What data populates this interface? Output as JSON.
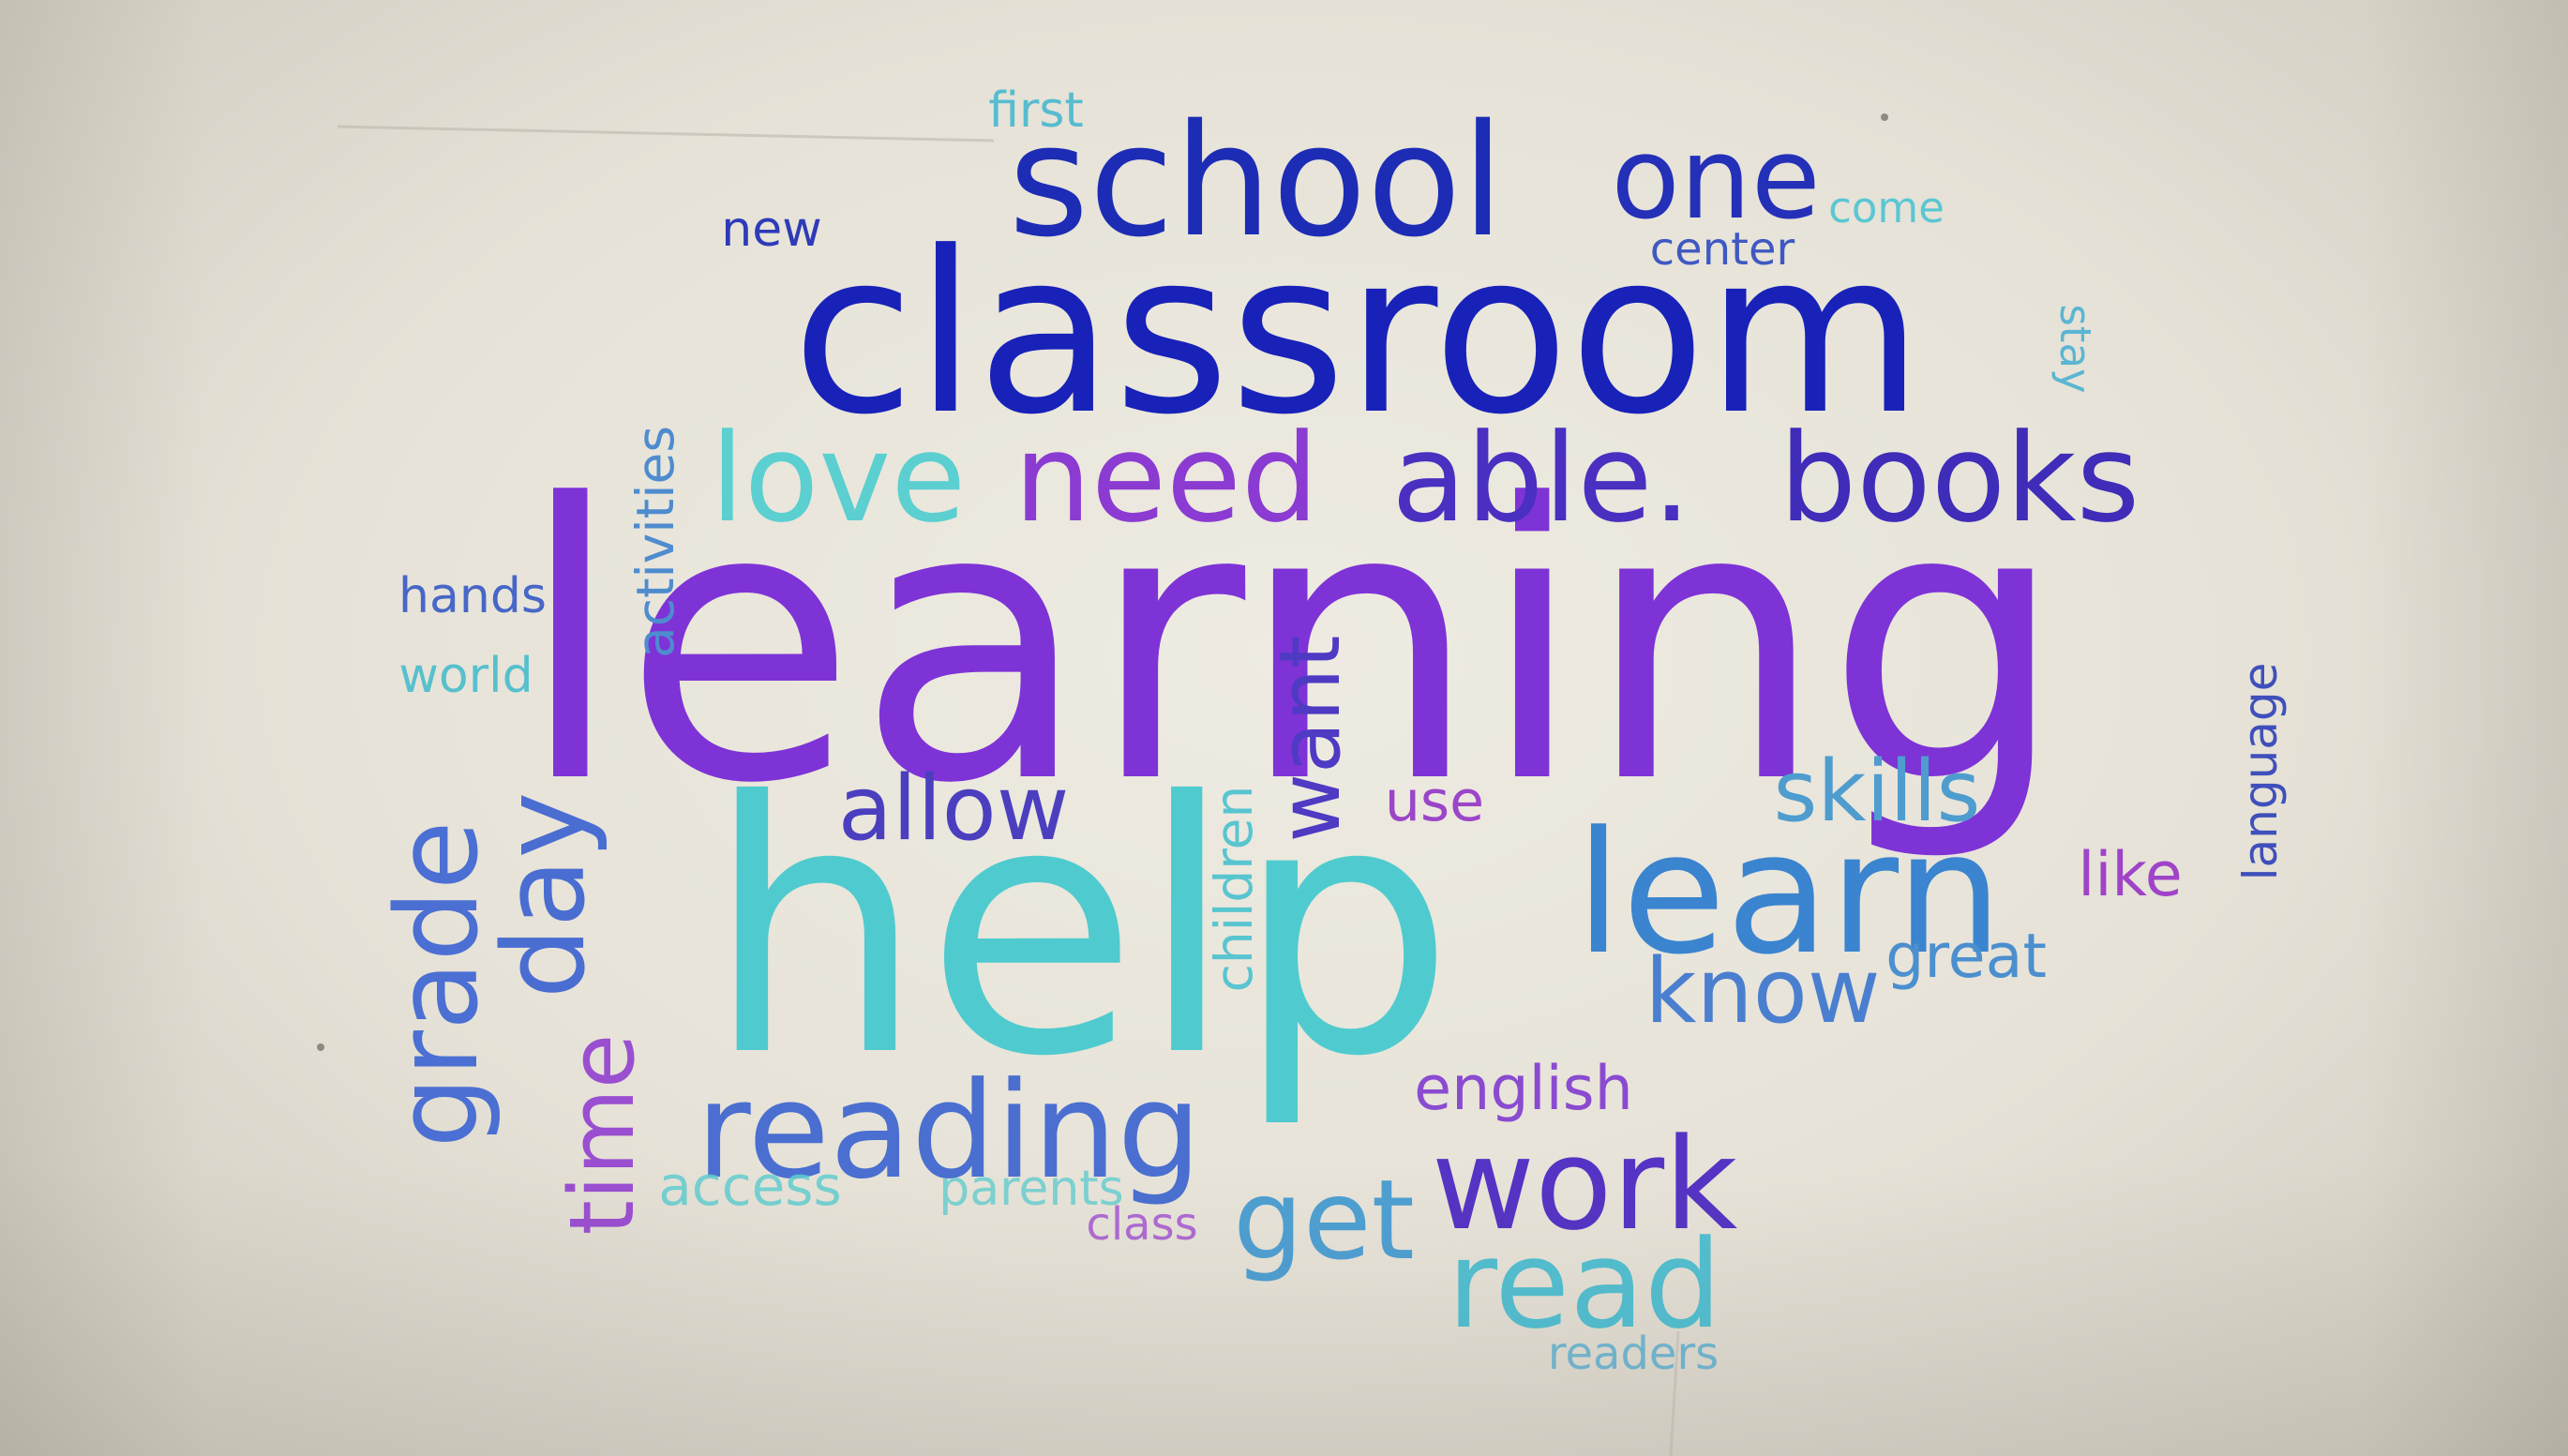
{
  "words": [
    {
      "id": "learning",
      "text": "learning",
      "color": "#7e33d6"
    },
    {
      "id": "help",
      "text": "help",
      "color": "#4fcbcf"
    },
    {
      "id": "classroom",
      "text": "classroom",
      "color": "#1822b8"
    },
    {
      "id": "school",
      "text": "school",
      "color": "#1d2cb5"
    },
    {
      "id": "one",
      "text": "one",
      "color": "#2430b8"
    },
    {
      "id": "love",
      "text": "love",
      "color": "#5ccfd0"
    },
    {
      "id": "need",
      "text": "need",
      "color": "#8b3bd1"
    },
    {
      "id": "able",
      "text": "able.",
      "color": "#4a2fc0"
    },
    {
      "id": "books",
      "text": "books",
      "color": "#3f2cb8"
    },
    {
      "id": "learn",
      "text": "learn",
      "color": "#3a84d0"
    },
    {
      "id": "reading",
      "text": "reading",
      "color": "#4a6fd0"
    },
    {
      "id": "grade",
      "text": "grade",
      "color": "#4b6fd3"
    },
    {
      "id": "day",
      "text": "day",
      "color": "#4a6dd2"
    },
    {
      "id": "work",
      "text": "work",
      "color": "#5533c4"
    },
    {
      "id": "read",
      "text": "read",
      "color": "#52bfd1"
    },
    {
      "id": "get",
      "text": "get",
      "color": "#4e9fd2"
    },
    {
      "id": "time",
      "text": "time",
      "color": "#9a4fd0"
    },
    {
      "id": "allow",
      "text": "allow",
      "color": "#4b3fbf"
    },
    {
      "id": "want",
      "text": "want",
      "color": "#4e3ac3"
    },
    {
      "id": "skills",
      "text": "skills",
      "color": "#4f9ccf"
    },
    {
      "id": "know",
      "text": "know",
      "color": "#4a7fd0"
    },
    {
      "id": "great",
      "text": "great",
      "color": "#4b8fcf"
    },
    {
      "id": "english",
      "text": "english",
      "color": "#8a4bd0"
    },
    {
      "id": "like",
      "text": "like",
      "color": "#9f43c9"
    },
    {
      "id": "use",
      "text": "use",
      "color": "#9b45c8"
    },
    {
      "id": "language",
      "text": "language",
      "color": "#3f4fbb"
    },
    {
      "id": "children",
      "text": "children",
      "color": "#58c5d0"
    },
    {
      "id": "activities",
      "text": "activities",
      "color": "#4e8ccf"
    },
    {
      "id": "hands",
      "text": "hands",
      "color": "#4767c8"
    },
    {
      "id": "world",
      "text": "world",
      "color": "#57c0cd"
    },
    {
      "id": "new",
      "text": "new",
      "color": "#2d3bb8"
    },
    {
      "id": "first",
      "text": "first",
      "color": "#57bcd0"
    },
    {
      "id": "come",
      "text": "come",
      "color": "#5ac7d2"
    },
    {
      "id": "center",
      "text": "center",
      "color": "#3f59c2"
    },
    {
      "id": "stay",
      "text": "stay",
      "color": "#5ab6d2"
    },
    {
      "id": "access",
      "text": "access",
      "color": "#62cdd0"
    },
    {
      "id": "parents",
      "text": "parents",
      "color": "#62cdd0"
    },
    {
      "id": "class",
      "text": "class",
      "color": "#a95fd2"
    },
    {
      "id": "readers",
      "text": "readers",
      "color": "#67b4d4"
    }
  ]
}
